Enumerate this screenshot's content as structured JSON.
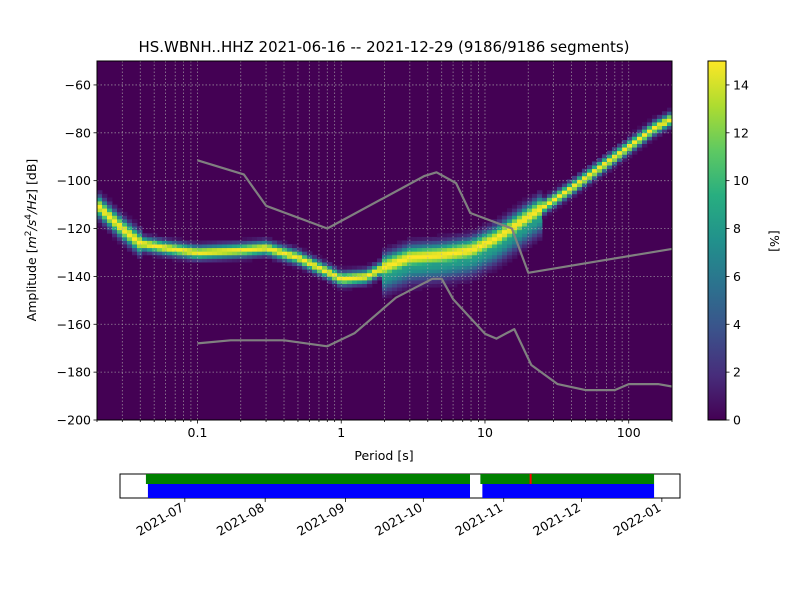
{
  "title": "HS.WBNH..HHZ   2021-06-16 -- 2021-12-29  (9186/9186 segments)",
  "chart_data": {
    "type": "heatmap",
    "title": "HS.WBNH..HHZ   2021-06-16 -- 2021-12-29  (9186/9186 segments)",
    "xlabel": "Period [s]",
    "ylabel": "Amplitude [m²/s⁴/Hz] [dB]",
    "ylabel_parts": [
      "Amplitude [",
      "m",
      "2",
      "/",
      "s",
      "4",
      "/Hz",
      "] [dB]"
    ],
    "x_scale": "log",
    "xlim": [
      0.02,
      200
    ],
    "ylim": [
      -200,
      -50
    ],
    "grid": true,
    "x_ticks": [
      0.1,
      1,
      10,
      100
    ],
    "x_tick_labels": [
      "0.1",
      "1",
      "10",
      "100"
    ],
    "y_ticks": [
      -200,
      -180,
      -160,
      -140,
      -120,
      -100,
      -80,
      -60
    ],
    "y_tick_labels": [
      "−200",
      "−180",
      "−160",
      "−140",
      "−120",
      "−100",
      "−80",
      "−60"
    ],
    "colorbar": {
      "label": "[%]",
      "range": [
        0,
        15
      ],
      "ticks": [
        0,
        2,
        4,
        6,
        8,
        10,
        12,
        14
      ],
      "colormap": "viridis"
    },
    "density_ridge": [
      {
        "period": 0.02,
        "db": -110
      },
      {
        "period": 0.03,
        "db": -120
      },
      {
        "period": 0.04,
        "db": -126
      },
      {
        "period": 0.06,
        "db": -128
      },
      {
        "period": 0.1,
        "db": -130
      },
      {
        "period": 0.2,
        "db": -129
      },
      {
        "period": 0.3,
        "db": -128
      },
      {
        "period": 0.5,
        "db": -132
      },
      {
        "period": 0.8,
        "db": -138
      },
      {
        "period": 1.0,
        "db": -141
      },
      {
        "period": 1.5,
        "db": -140
      },
      {
        "period": 2.0,
        "db": -136
      },
      {
        "period": 3.0,
        "db": -132
      },
      {
        "period": 5.0,
        "db": -131
      },
      {
        "period": 8.0,
        "db": -129
      },
      {
        "period": 12.0,
        "db": -124
      },
      {
        "period": 20.0,
        "db": -115
      },
      {
        "period": 40.0,
        "db": -103
      },
      {
        "period": 80.0,
        "db": -90
      },
      {
        "period": 150.0,
        "db": -78
      },
      {
        "period": 200.0,
        "db": -74
      }
    ],
    "series": [
      {
        "style": "gray",
        "points": [
          [
            0.1,
            -91.5
          ],
          [
            0.21,
            -97.4
          ],
          [
            0.3,
            -110.5
          ],
          [
            0.8,
            -120
          ],
          [
            3.8,
            -98
          ],
          [
            4.6,
            -96.5
          ],
          [
            6.3,
            -101
          ],
          [
            7.9,
            -113.5
          ],
          [
            15.4,
            -120
          ],
          [
            20,
            -138.5
          ],
          [
            200,
            -128.5
          ]
        ]
      },
      {
        "style": "gray",
        "points": [
          [
            0.1,
            -168
          ],
          [
            0.17,
            -166.7
          ],
          [
            0.4,
            -166.7
          ],
          [
            0.8,
            -169.2
          ],
          [
            1.24,
            -163.7
          ],
          [
            2.4,
            -148.9
          ],
          [
            4.3,
            -141
          ],
          [
            5.0,
            -141
          ],
          [
            6.0,
            -149.5
          ],
          [
            10,
            -164
          ],
          [
            12,
            -166
          ],
          [
            16,
            -162
          ],
          [
            21,
            -177
          ],
          [
            32,
            -185
          ],
          [
            50,
            -187.5
          ],
          [
            80,
            -187.5
          ],
          [
            100,
            -185
          ],
          [
            160,
            -185
          ],
          [
            200,
            -186
          ]
        ]
      }
    ]
  },
  "timeline": {
    "start": "2021-06-16",
    "end": "2021-12-29",
    "gap": [
      "2021-10-19",
      "2021-10-23"
    ],
    "flag_date": "2021-11-11",
    "colors": {
      "coverage": "#0000ff",
      "data_ok": "#008000",
      "flag": "#ff0000"
    },
    "tick_labels": [
      "2021-07",
      "2021-08",
      "2021-09",
      "2021-10",
      "2021-11",
      "2021-12",
      "2022-01"
    ],
    "tick_dates": [
      "2021-07-01",
      "2021-08-01",
      "2021-09-01",
      "2021-10-01",
      "2021-11-01",
      "2021-12-01",
      "2022-01-01"
    ],
    "range": [
      "2021-06-06",
      "2022-01-08"
    ]
  }
}
